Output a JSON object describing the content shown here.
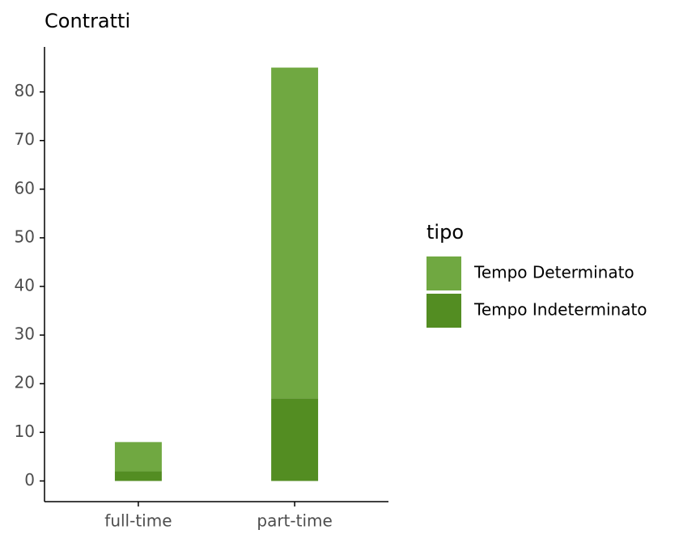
{
  "chart_data": {
    "type": "bar",
    "stacked": true,
    "title": "Contratti",
    "categories": [
      "full-time",
      "part-time"
    ],
    "series": [
      {
        "name": "Tempo Determinato",
        "color": "#70a841",
        "values": [
          6,
          68
        ]
      },
      {
        "name": "Tempo Indeterminato",
        "color": "#538d22",
        "values": [
          2,
          17
        ]
      }
    ],
    "ylim": [
      -4.25,
      89.25
    ],
    "yticks": [
      0,
      10,
      20,
      30,
      40,
      50,
      60,
      70,
      80
    ],
    "legend_title": "tipo",
    "legend": "right",
    "grid": false
  }
}
